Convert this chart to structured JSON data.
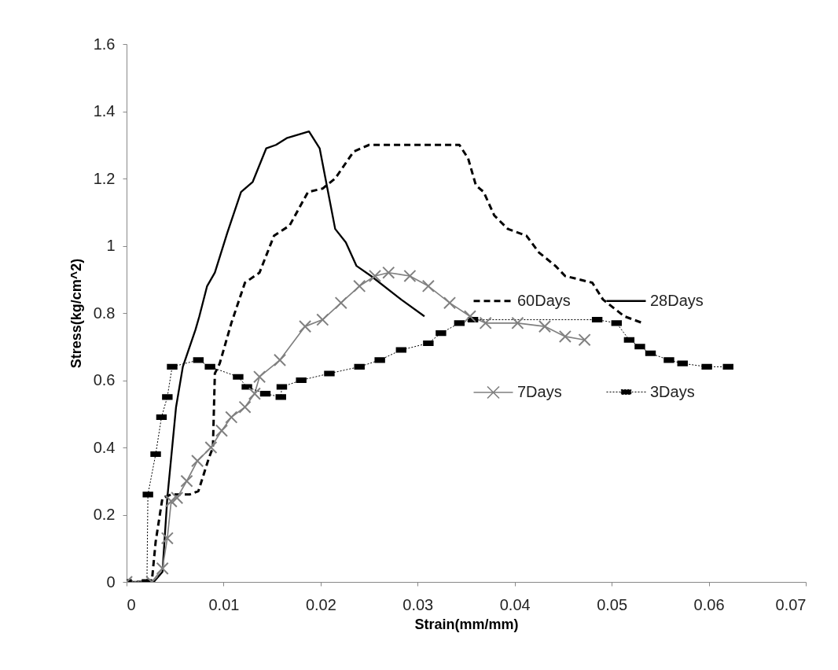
{
  "chart_data": {
    "type": "line",
    "xlabel": "Strain(mm/mm)",
    "ylabel": "Stress(kg/cm^2)",
    "xlim": [
      0,
      0.07
    ],
    "xticks": [
      0,
      0.01,
      0.02,
      0.03,
      0.04,
      0.05,
      0.06,
      0.07
    ],
    "ylim": [
      0,
      1.6
    ],
    "yticks": [
      0,
      0.2,
      0.4,
      0.6,
      0.8,
      1,
      1.2,
      1.4,
      1.6
    ],
    "grid": false,
    "legend": "right",
    "series": [
      {
        "name": "60Days",
        "color": "#000000",
        "line_style": "dashed",
        "marker": "none",
        "x": [
          0,
          0.0026,
          0.003,
          0.0037,
          0.0046,
          0.0065,
          0.0074,
          0.0085,
          0.0089,
          0.0091,
          0.0096,
          0.0108,
          0.0122,
          0.0137,
          0.0152,
          0.0168,
          0.0187,
          0.0202,
          0.0215,
          0.0234,
          0.025,
          0.03,
          0.0343,
          0.0352,
          0.036,
          0.0368,
          0.0379,
          0.0393,
          0.0412,
          0.0425,
          0.0442,
          0.0452,
          0.048,
          0.0491,
          0.0513,
          0.0532
        ],
        "values": [
          0,
          0,
          0.12,
          0.25,
          0.26,
          0.26,
          0.27,
          0.37,
          0.4,
          0.62,
          0.65,
          0.77,
          0.89,
          0.92,
          1.03,
          1.06,
          1.16,
          1.17,
          1.2,
          1.28,
          1.3,
          1.3,
          1.3,
          1.26,
          1.18,
          1.16,
          1.09,
          1.05,
          1.03,
          0.98,
          0.94,
          0.91,
          0.89,
          0.84,
          0.79,
          0.77
        ]
      },
      {
        "name": "28Days",
        "color": "#000000",
        "line_style": "solid",
        "marker": "none",
        "x": [
          0,
          0.0028,
          0.0037,
          0.0042,
          0.0051,
          0.0058,
          0.0071,
          0.0075,
          0.0083,
          0.0091,
          0.0104,
          0.0118,
          0.013,
          0.0144,
          0.0154,
          0.0165,
          0.0188,
          0.0199,
          0.0215,
          0.0226,
          0.0237,
          0.0252,
          0.0283,
          0.0307
        ],
        "values": [
          0,
          0,
          0.03,
          0.25,
          0.52,
          0.64,
          0.75,
          0.79,
          0.88,
          0.92,
          1.04,
          1.16,
          1.19,
          1.29,
          1.3,
          1.32,
          1.34,
          1.29,
          1.05,
          1.01,
          0.94,
          0.91,
          0.84,
          0.79
        ]
      },
      {
        "name": "7Days",
        "color": "#808080",
        "line_style": "solid",
        "marker": "cross",
        "x": [
          0,
          0.0026,
          0.0037,
          0.0042,
          0.0046,
          0.0052,
          0.0062,
          0.0073,
          0.0087,
          0.0098,
          0.0108,
          0.0122,
          0.0132,
          0.0137,
          0.0158,
          0.0184,
          0.0202,
          0.0221,
          0.024,
          0.0256,
          0.027,
          0.0292,
          0.0311,
          0.0333,
          0.0354,
          0.037,
          0.0403,
          0.0431,
          0.0452,
          0.0472
        ],
        "values": [
          0,
          0,
          0.04,
          0.13,
          0.24,
          0.25,
          0.3,
          0.36,
          0.4,
          0.45,
          0.49,
          0.52,
          0.56,
          0.61,
          0.66,
          0.76,
          0.78,
          0.83,
          0.88,
          0.91,
          0.92,
          0.91,
          0.88,
          0.83,
          0.79,
          0.77,
          0.77,
          0.76,
          0.73,
          0.72
        ]
      },
      {
        "name": "3Days",
        "color": "#000000",
        "line_style": "dotted",
        "marker": "square",
        "x": [
          0,
          0.0021,
          0.0022,
          0.003,
          0.0036,
          0.0042,
          0.0047,
          0.0074,
          0.0086,
          0.0115,
          0.0124,
          0.0143,
          0.0159,
          0.016,
          0.018,
          0.0209,
          0.024,
          0.0261,
          0.0283,
          0.0311,
          0.0324,
          0.0343,
          0.0357,
          0.0485,
          0.0505,
          0.0518,
          0.0529,
          0.054,
          0.0559,
          0.0573,
          0.0598,
          0.062
        ],
        "values": [
          0,
          0,
          0.26,
          0.38,
          0.49,
          0.55,
          0.64,
          0.66,
          0.64,
          0.61,
          0.58,
          0.56,
          0.55,
          0.58,
          0.6,
          0.62,
          0.64,
          0.66,
          0.69,
          0.71,
          0.74,
          0.77,
          0.78,
          0.78,
          0.77,
          0.72,
          0.7,
          0.68,
          0.66,
          0.65,
          0.64,
          0.64
        ]
      }
    ]
  }
}
